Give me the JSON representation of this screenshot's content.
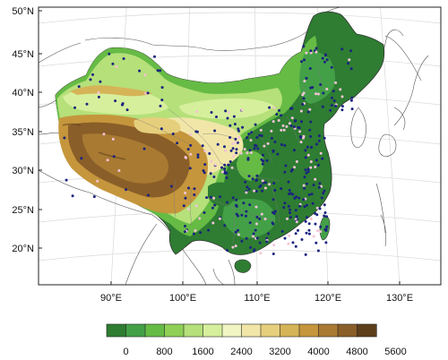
{
  "map": {
    "lat_labels": [
      "50°N",
      "45°N",
      "40°N",
      "35°N",
      "30°N",
      "25°N",
      "20°N"
    ],
    "lon_labels": [
      "90°E",
      "100°E",
      "110°E",
      "120°E",
      "130°E"
    ],
    "lat_values": [
      50,
      45,
      40,
      35,
      30,
      25,
      20
    ],
    "lon_values": [
      90,
      100,
      110,
      120,
      130
    ],
    "lon_range": [
      80,
      137
    ],
    "lat_range": [
      15,
      53
    ],
    "station_color": "#1a237e",
    "station_alt_color": "#f3c4d6"
  },
  "colorbar": {
    "labels": [
      "0",
      "800",
      "1600",
      "2400",
      "3200",
      "4000",
      "4800",
      "5600"
    ],
    "colors": [
      "#2e7d32",
      "#43a047",
      "#66bb45",
      "#8fcf55",
      "#b5e07a",
      "#d6ef9c",
      "#f1f5c4",
      "#f1e6a8",
      "#e6cf7c",
      "#d5b457",
      "#c5963c",
      "#a97a32",
      "#8a5e28",
      "#5e3f1c"
    ]
  }
}
